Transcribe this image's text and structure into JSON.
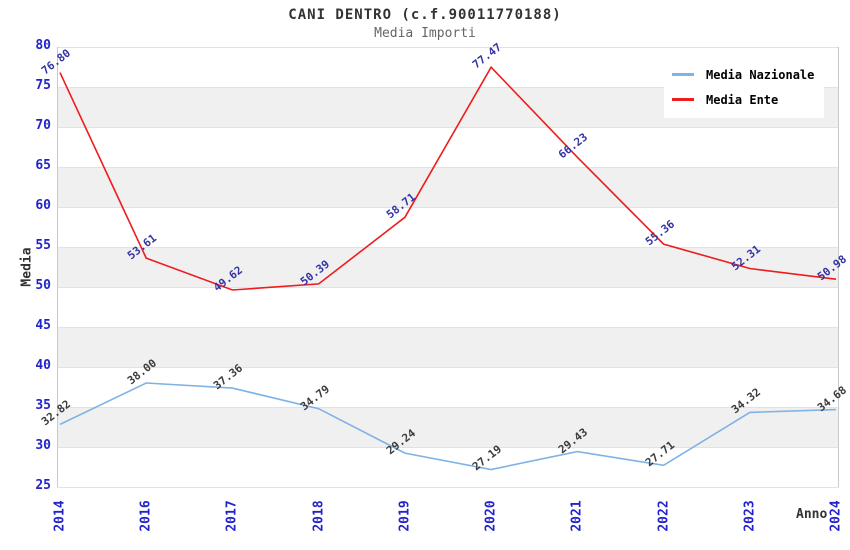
{
  "title": "CANI DENTRO (c.f.90011770188)",
  "subtitle": "Media Importi",
  "chart_data": {
    "type": "line",
    "x": [
      "2014",
      "2016",
      "2017",
      "2018",
      "2019",
      "2020",
      "2021",
      "2022",
      "2023",
      "2024"
    ],
    "series": [
      {
        "name": "Media Nazionale",
        "color": "#7fb2e5",
        "label_color": "#3c3c3c",
        "values": [
          32.82,
          38.0,
          37.36,
          34.79,
          29.24,
          27.19,
          29.43,
          27.71,
          34.32,
          34.68
        ],
        "labels": [
          "32.82",
          "38.00",
          "37.36",
          "34.79",
          "29.24",
          "27.19",
          "29.43",
          "27.71",
          "34.32",
          "34.68"
        ]
      },
      {
        "name": "Media Ente",
        "color": "#ee1c1c",
        "label_color": "#3434a4",
        "values": [
          76.8,
          53.61,
          49.62,
          50.39,
          58.71,
          77.47,
          66.23,
          55.36,
          52.31,
          50.98
        ],
        "labels": [
          "76.80",
          "53.61",
          "49.62",
          "50.39",
          "58.71",
          "77.47",
          "66.23",
          "55.36",
          "52.31",
          "50.98"
        ]
      }
    ],
    "title": "CANI DENTRO (c.f.90011770188)",
    "subtitle": "Media Importi",
    "xlabel": "Anno",
    "ylabel": "Media",
    "ylim": [
      25,
      80
    ],
    "ytick_step": 5,
    "yticks": [
      80,
      75,
      70,
      65,
      60,
      55,
      50,
      45,
      40,
      35,
      30,
      25
    ],
    "grid": true,
    "alternating_bands": true,
    "band_color": "#f0f0f0",
    "legend_position": "top-right",
    "legend": [
      "Media Nazionale",
      "Media Ente"
    ]
  }
}
